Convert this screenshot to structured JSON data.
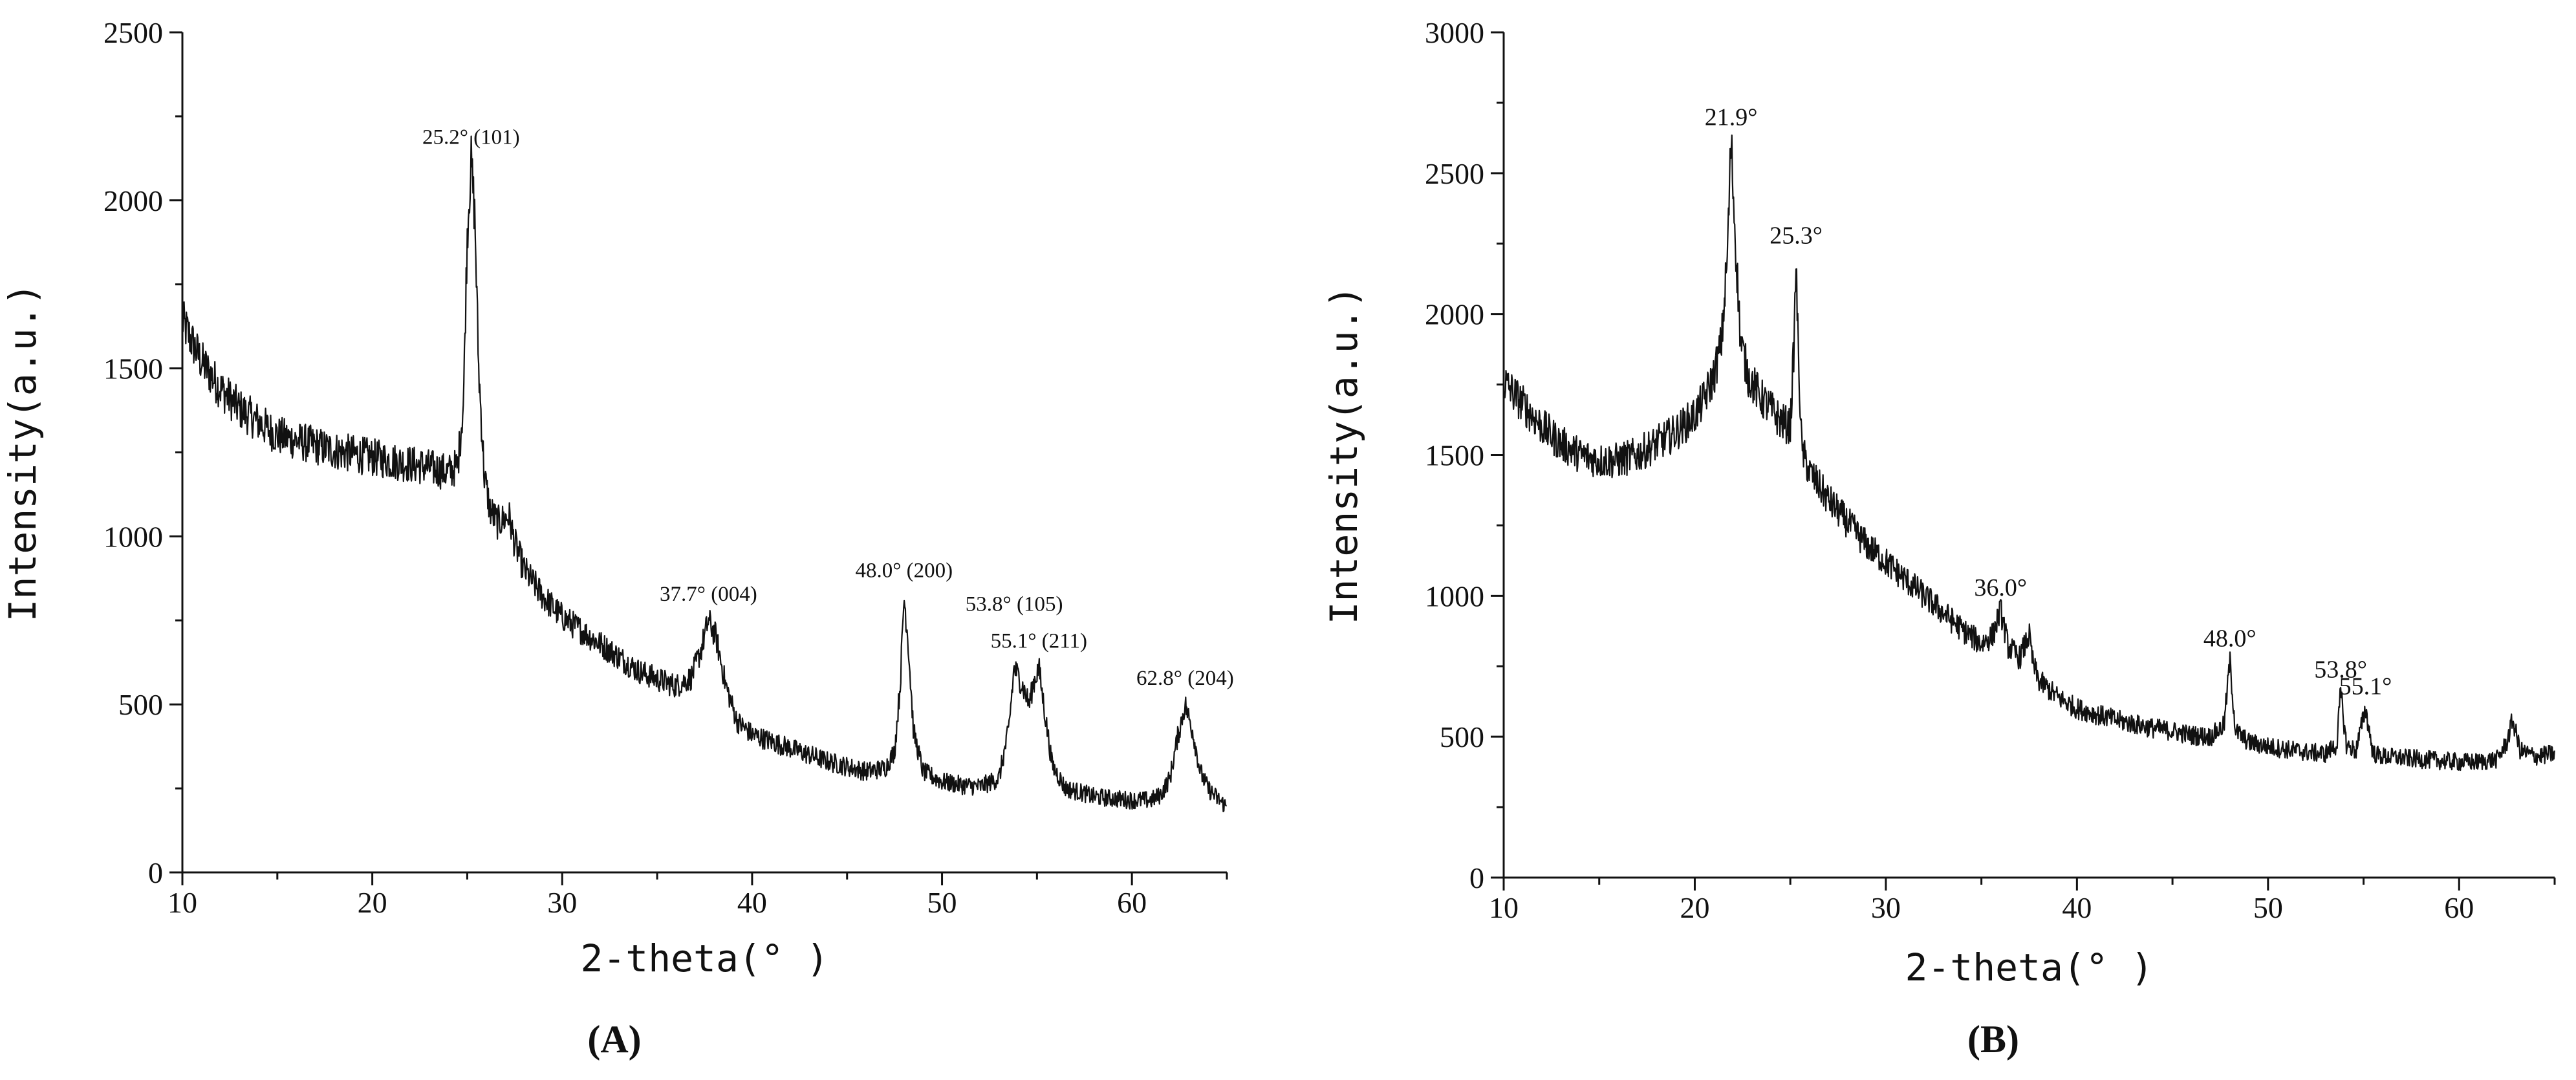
{
  "chart_data": [
    {
      "type": "line",
      "panel_label": "(A)",
      "xlabel": "2-theta(° )",
      "ylabel": "Intensity(a.u.)",
      "xlim": [
        10,
        65
      ],
      "ylim": [
        0,
        2500
      ],
      "xticks": [
        10,
        20,
        30,
        40,
        50,
        60
      ],
      "yticks": [
        0,
        500,
        1000,
        1500,
        2000,
        2500
      ],
      "grid": false,
      "series": [
        {
          "x": [
            10,
            11,
            12,
            13,
            14,
            15,
            16,
            17,
            18,
            19,
            20,
            21,
            22,
            23,
            24,
            24.5,
            24.8,
            25.0,
            25.2,
            25.4,
            25.6,
            25.9,
            26.2,
            26.6,
            27.2,
            27.5,
            28,
            29,
            30,
            31,
            32,
            33,
            34,
            35,
            36,
            36.8,
            37.3,
            37.7,
            38.1,
            38.6,
            39.2,
            40,
            41,
            42,
            43,
            44,
            45,
            46,
            47,
            47.5,
            47.8,
            48.0,
            48.2,
            48.5,
            49,
            50,
            51,
            52,
            53,
            53.5,
            53.8,
            54.2,
            54.6,
            54.8,
            55.1,
            55.4,
            55.8,
            56.5,
            57.5,
            58,
            59,
            60,
            61,
            61.5,
            62,
            62.4,
            62.8,
            63.2,
            63.6,
            64,
            64.5,
            65
          ],
          "y": [
            1640,
            1520,
            1440,
            1380,
            1340,
            1300,
            1285,
            1270,
            1255,
            1245,
            1235,
            1225,
            1215,
            1205,
            1190,
            1210,
            1400,
            1900,
            2120,
            1950,
            1500,
            1180,
            1080,
            1040,
            1060,
            980,
            900,
            820,
            760,
            720,
            680,
            640,
            600,
            575,
            555,
            580,
            660,
            750,
            700,
            560,
            450,
            410,
            390,
            370,
            350,
            330,
            315,
            300,
            310,
            360,
            560,
            820,
            700,
            420,
            300,
            270,
            260,
            255,
            280,
            420,
            610,
            560,
            500,
            560,
            610,
            480,
            320,
            250,
            235,
            225,
            220,
            215,
            215,
            230,
            280,
            400,
            500,
            420,
            300,
            250,
            220,
            195
          ]
        }
      ],
      "annotations": [
        {
          "text": "25.2° (101)",
          "x": 25.2,
          "y": 2130
        },
        {
          "text": "37.7° (004)",
          "x": 37.7,
          "y": 770
        },
        {
          "text": "48.0° (200)",
          "x": 48.0,
          "y": 840
        },
        {
          "text": "53.8° (105)",
          "x": 53.8,
          "y": 740
        },
        {
          "text": "55.1° (211)",
          "x": 55.1,
          "y": 630
        },
        {
          "text": "62.8° (204)",
          "x": 62.8,
          "y": 520
        }
      ]
    },
    {
      "type": "line",
      "panel_label": "(B)",
      "xlabel": "2-theta(° )",
      "ylabel": "Intensity(a.u.)",
      "xlim": [
        10,
        65
      ],
      "ylim": [
        0,
        3000
      ],
      "xticks": [
        10,
        20,
        30,
        40,
        50,
        60
      ],
      "yticks": [
        0,
        500,
        1000,
        1500,
        2000,
        2500,
        3000
      ],
      "grid": false,
      "series": [
        {
          "x": [
            10,
            11,
            12,
            13,
            14,
            15,
            16,
            17,
            18,
            19,
            20,
            20.5,
            21,
            21.4,
            21.7,
            21.9,
            22.1,
            22.4,
            22.8,
            23.5,
            24,
            24.5,
            25.0,
            25.2,
            25.3,
            25.4,
            25.6,
            26,
            27,
            28,
            29,
            30,
            31,
            32,
            33,
            34,
            35,
            35.6,
            36.0,
            36.4,
            37,
            37.5,
            37.7,
            38,
            39,
            40,
            41,
            42,
            43,
            44,
            45,
            46,
            47,
            47.7,
            48.0,
            48.3,
            49,
            50,
            51,
            52,
            53,
            53.6,
            53.8,
            54.1,
            54.6,
            55.1,
            55.5,
            56,
            57,
            58,
            59,
            60,
            61,
            62,
            62.5,
            62.8,
            63.2,
            64,
            65
          ],
          "y": [
            1760,
            1680,
            1600,
            1540,
            1500,
            1480,
            1480,
            1500,
            1540,
            1580,
            1640,
            1700,
            1780,
            1900,
            2200,
            2620,
            2300,
            1900,
            1780,
            1700,
            1660,
            1620,
            1600,
            1900,
            2200,
            1900,
            1520,
            1440,
            1340,
            1260,
            1180,
            1120,
            1060,
            1000,
            940,
            880,
            830,
            860,
            950,
            820,
            780,
            860,
            760,
            700,
            640,
            600,
            580,
            560,
            545,
            530,
            520,
            505,
            500,
            540,
            770,
            520,
            480,
            465,
            455,
            445,
            440,
            470,
            660,
            470,
            450,
            600,
            440,
            430,
            425,
            420,
            415,
            410,
            410,
            420,
            480,
            560,
            450,
            430,
            440
          ]
        }
      ],
      "annotations": [
        {
          "text": "21.9°",
          "x": 21.9,
          "y": 2620
        },
        {
          "text": "25.3°",
          "x": 25.3,
          "y": 2200
        },
        {
          "text": "36.0°",
          "x": 36.0,
          "y": 950
        },
        {
          "text": "48.0°",
          "x": 48.0,
          "y": 770
        },
        {
          "text": "53.8°",
          "x": 53.8,
          "y": 660
        },
        {
          "text": "55.1°",
          "x": 55.1,
          "y": 600
        }
      ]
    }
  ]
}
